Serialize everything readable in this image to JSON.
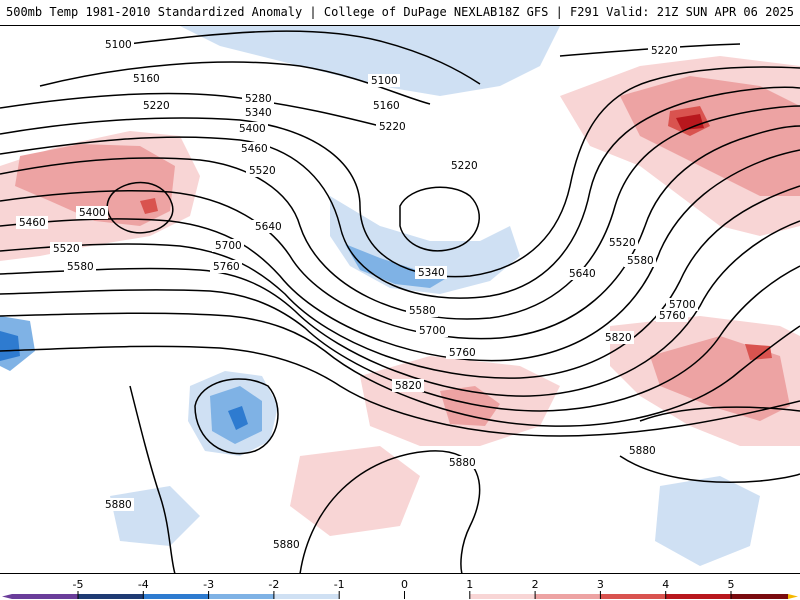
{
  "header": {
    "left": "500mb Temp 1981-2010 Standardized Anomaly | College of DuPage NEXLAB",
    "right": "18Z GFS | F291 Valid: 21Z SUN APR 06 2025"
  },
  "contour_labels": [
    "5100",
    "5160",
    "5220",
    "5280",
    "5340",
    "5400",
    "5460",
    "5520",
    "5580",
    "5640",
    "5700",
    "5760",
    "5820",
    "5880"
  ],
  "colors": {
    "anom_neg5": "#6a3d9a",
    "anom_neg4": "#1f3b73",
    "anom_neg3": "#2e7bd0",
    "anom_neg2": "#7fb2e5",
    "anom_neg1": "#cfe0f3",
    "anom_pos1": "#f8d5d5",
    "anom_pos2": "#eda3a3",
    "anom_pos3": "#d9534f",
    "anom_pos4": "#b8171d",
    "anom_pos5": "#7a0b0f",
    "anom_pos6": "#f5b800"
  },
  "colorbar": {
    "ticks": [
      "-5",
      "-4",
      "-3",
      "-2",
      "-1",
      "0",
      "1",
      "2",
      "3",
      "4",
      "5"
    ]
  }
}
